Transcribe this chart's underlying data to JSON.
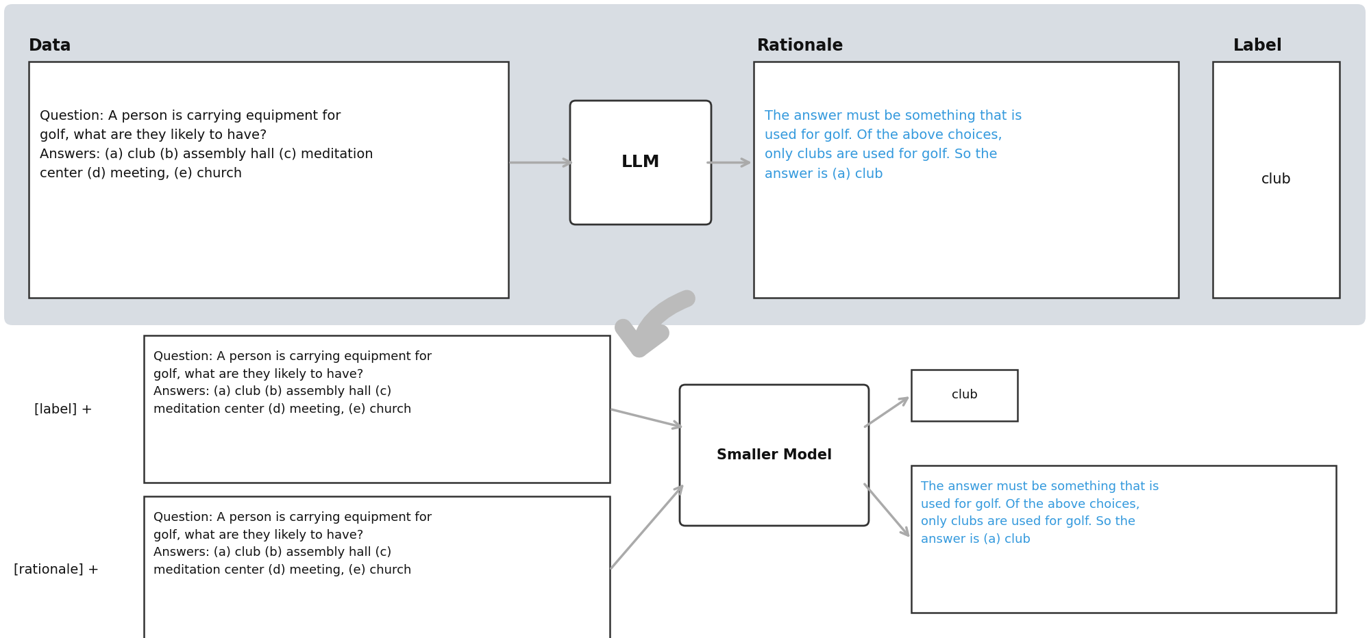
{
  "bg_color": "#ffffff",
  "top_panel_color": "#d8dde3",
  "blue_text_color": "#3399dd",
  "black_text_color": "#111111",
  "box_edge_color": "#333333",
  "box_bg_color": "#ffffff",
  "arrow_color": "#aaaaaa",
  "section_labels": [
    "Data",
    "Rationale",
    "Label"
  ],
  "question_text_top": "Question: A person is carrying equipment for\ngolf, what are they likely to have?\nAnswers: (a) club (b) assembly hall (c) meditation\ncenter (d) meeting, (e) church",
  "question_text_bottom": "Question: A person is carrying equipment for\ngolf, what are they likely to have?\nAnswers: (a) club (b) assembly hall (c)\nmeditation center (d) meeting, (e) church",
  "rationale_text": "The answer must be something that is\nused for golf. Of the above choices,\nonly clubs are used for golf. So the\nanswer is (a) club",
  "label_text": "club",
  "llm_text": "LLM",
  "smaller_model_text": "Smaller Model",
  "label_prefix_1": "[label] +",
  "label_prefix_2": "[rationale] +"
}
